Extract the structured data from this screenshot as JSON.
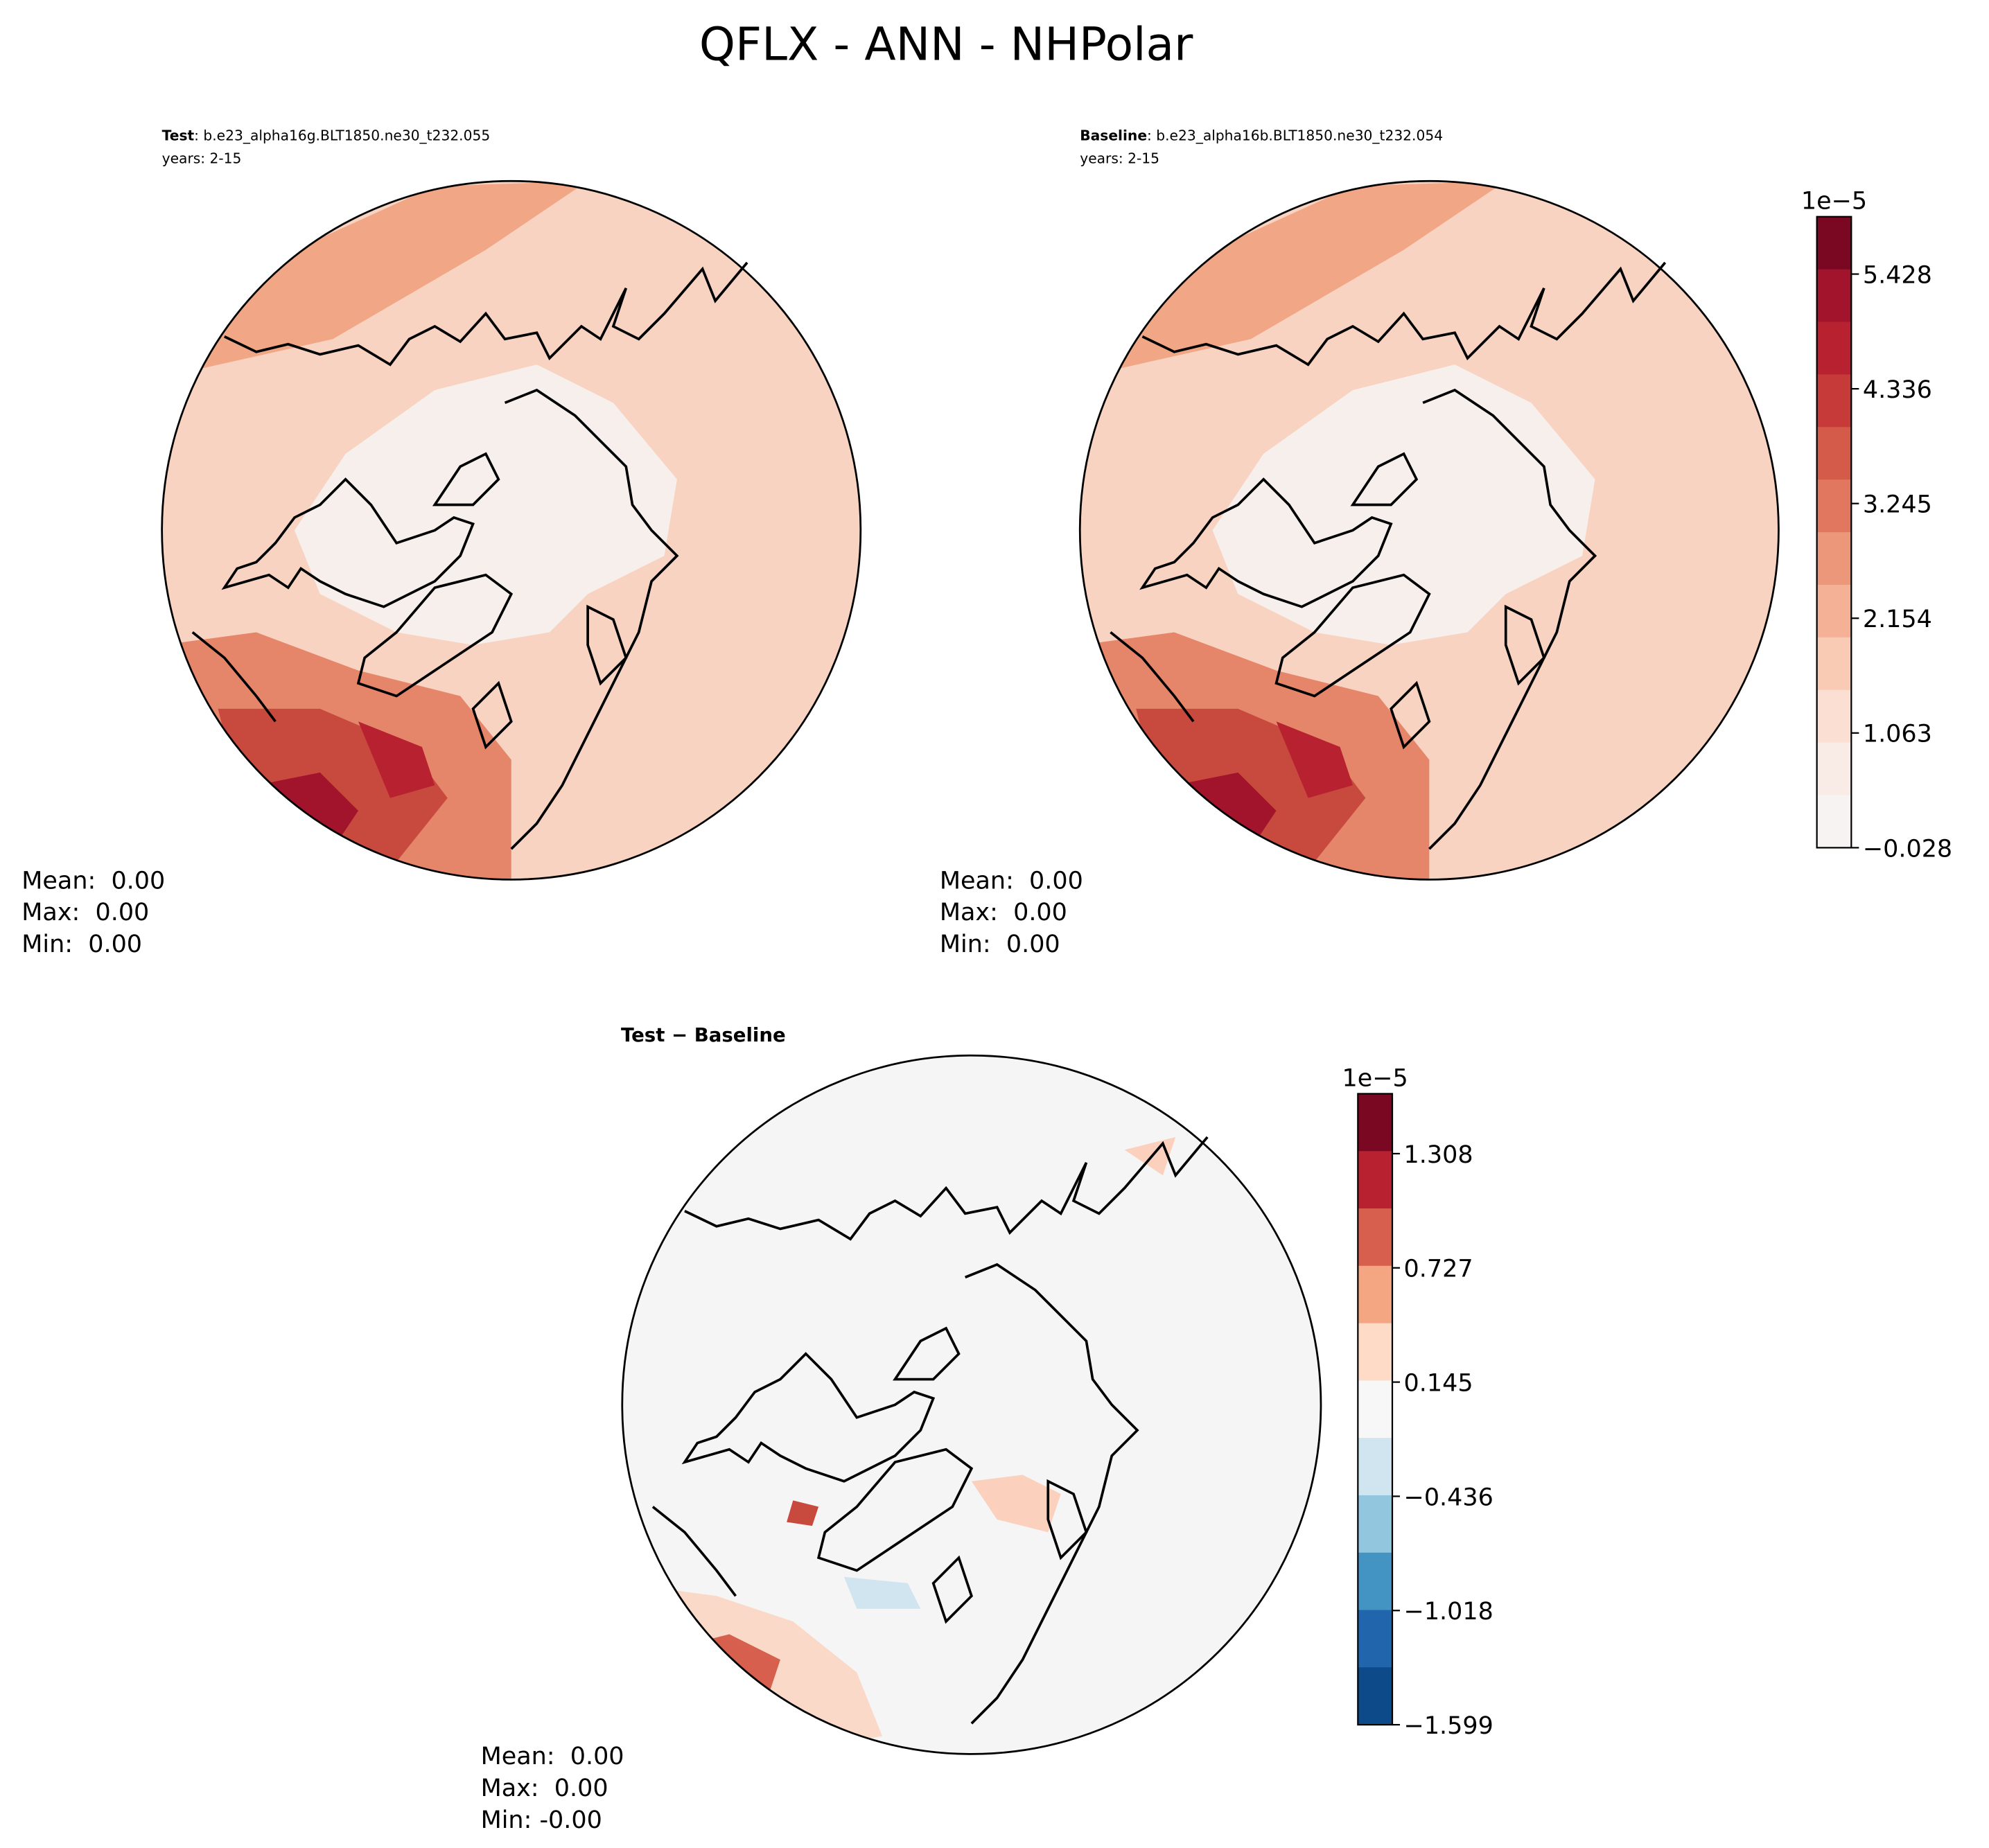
{
  "title": "QFLX - ANN - NHPolar",
  "panels": [
    {
      "label_bold": "Test",
      "label_rest": ": b.e23_alpha16g.BLT1850.ne30_t232.055",
      "years": "years: 2-15",
      "stats": [
        "Mean:  0.00",
        "Max:  0.00",
        "Min:  0.00"
      ]
    },
    {
      "label_bold": "Baseline",
      "label_rest": ": b.e23_alpha16b.BLT1850.ne30_t232.054",
      "years": "years: 2-15",
      "stats": [
        "Mean:  0.00",
        "Max:  0.00",
        "Min:  0.00"
      ]
    },
    {
      "label_bold": "Test − Baseline",
      "stats": [
        "Mean:  0.00",
        "Max:  0.00",
        "Min: -0.00"
      ]
    }
  ],
  "colorbars": [
    {
      "exponent": "1e−5",
      "ticks": [
        "5.428",
        "4.336",
        "3.245",
        "2.154",
        "1.063",
        "−0.028"
      ],
      "colors": [
        "#7a0822",
        "#a2142c",
        "#b82230",
        "#c63a3a",
        "#d45a4a",
        "#e0775e",
        "#ec967a",
        "#f4b196",
        "#f9cbb5",
        "#fbdfd2",
        "#f9ece6",
        "#f7f3f2"
      ]
    },
    {
      "exponent": "1e−5",
      "ticks": [
        "1.308",
        "0.727",
        "0.145",
        "−0.436",
        "−1.018",
        "−1.599"
      ],
      "colors": [
        "#7a0822",
        "#b82230",
        "#d6604d",
        "#f4a582",
        "#fddbc7",
        "#f7f7f7",
        "#d1e5f0",
        "#92c5de",
        "#4393c3",
        "#2166ac",
        "#0d4a8a"
      ]
    }
  ]
}
